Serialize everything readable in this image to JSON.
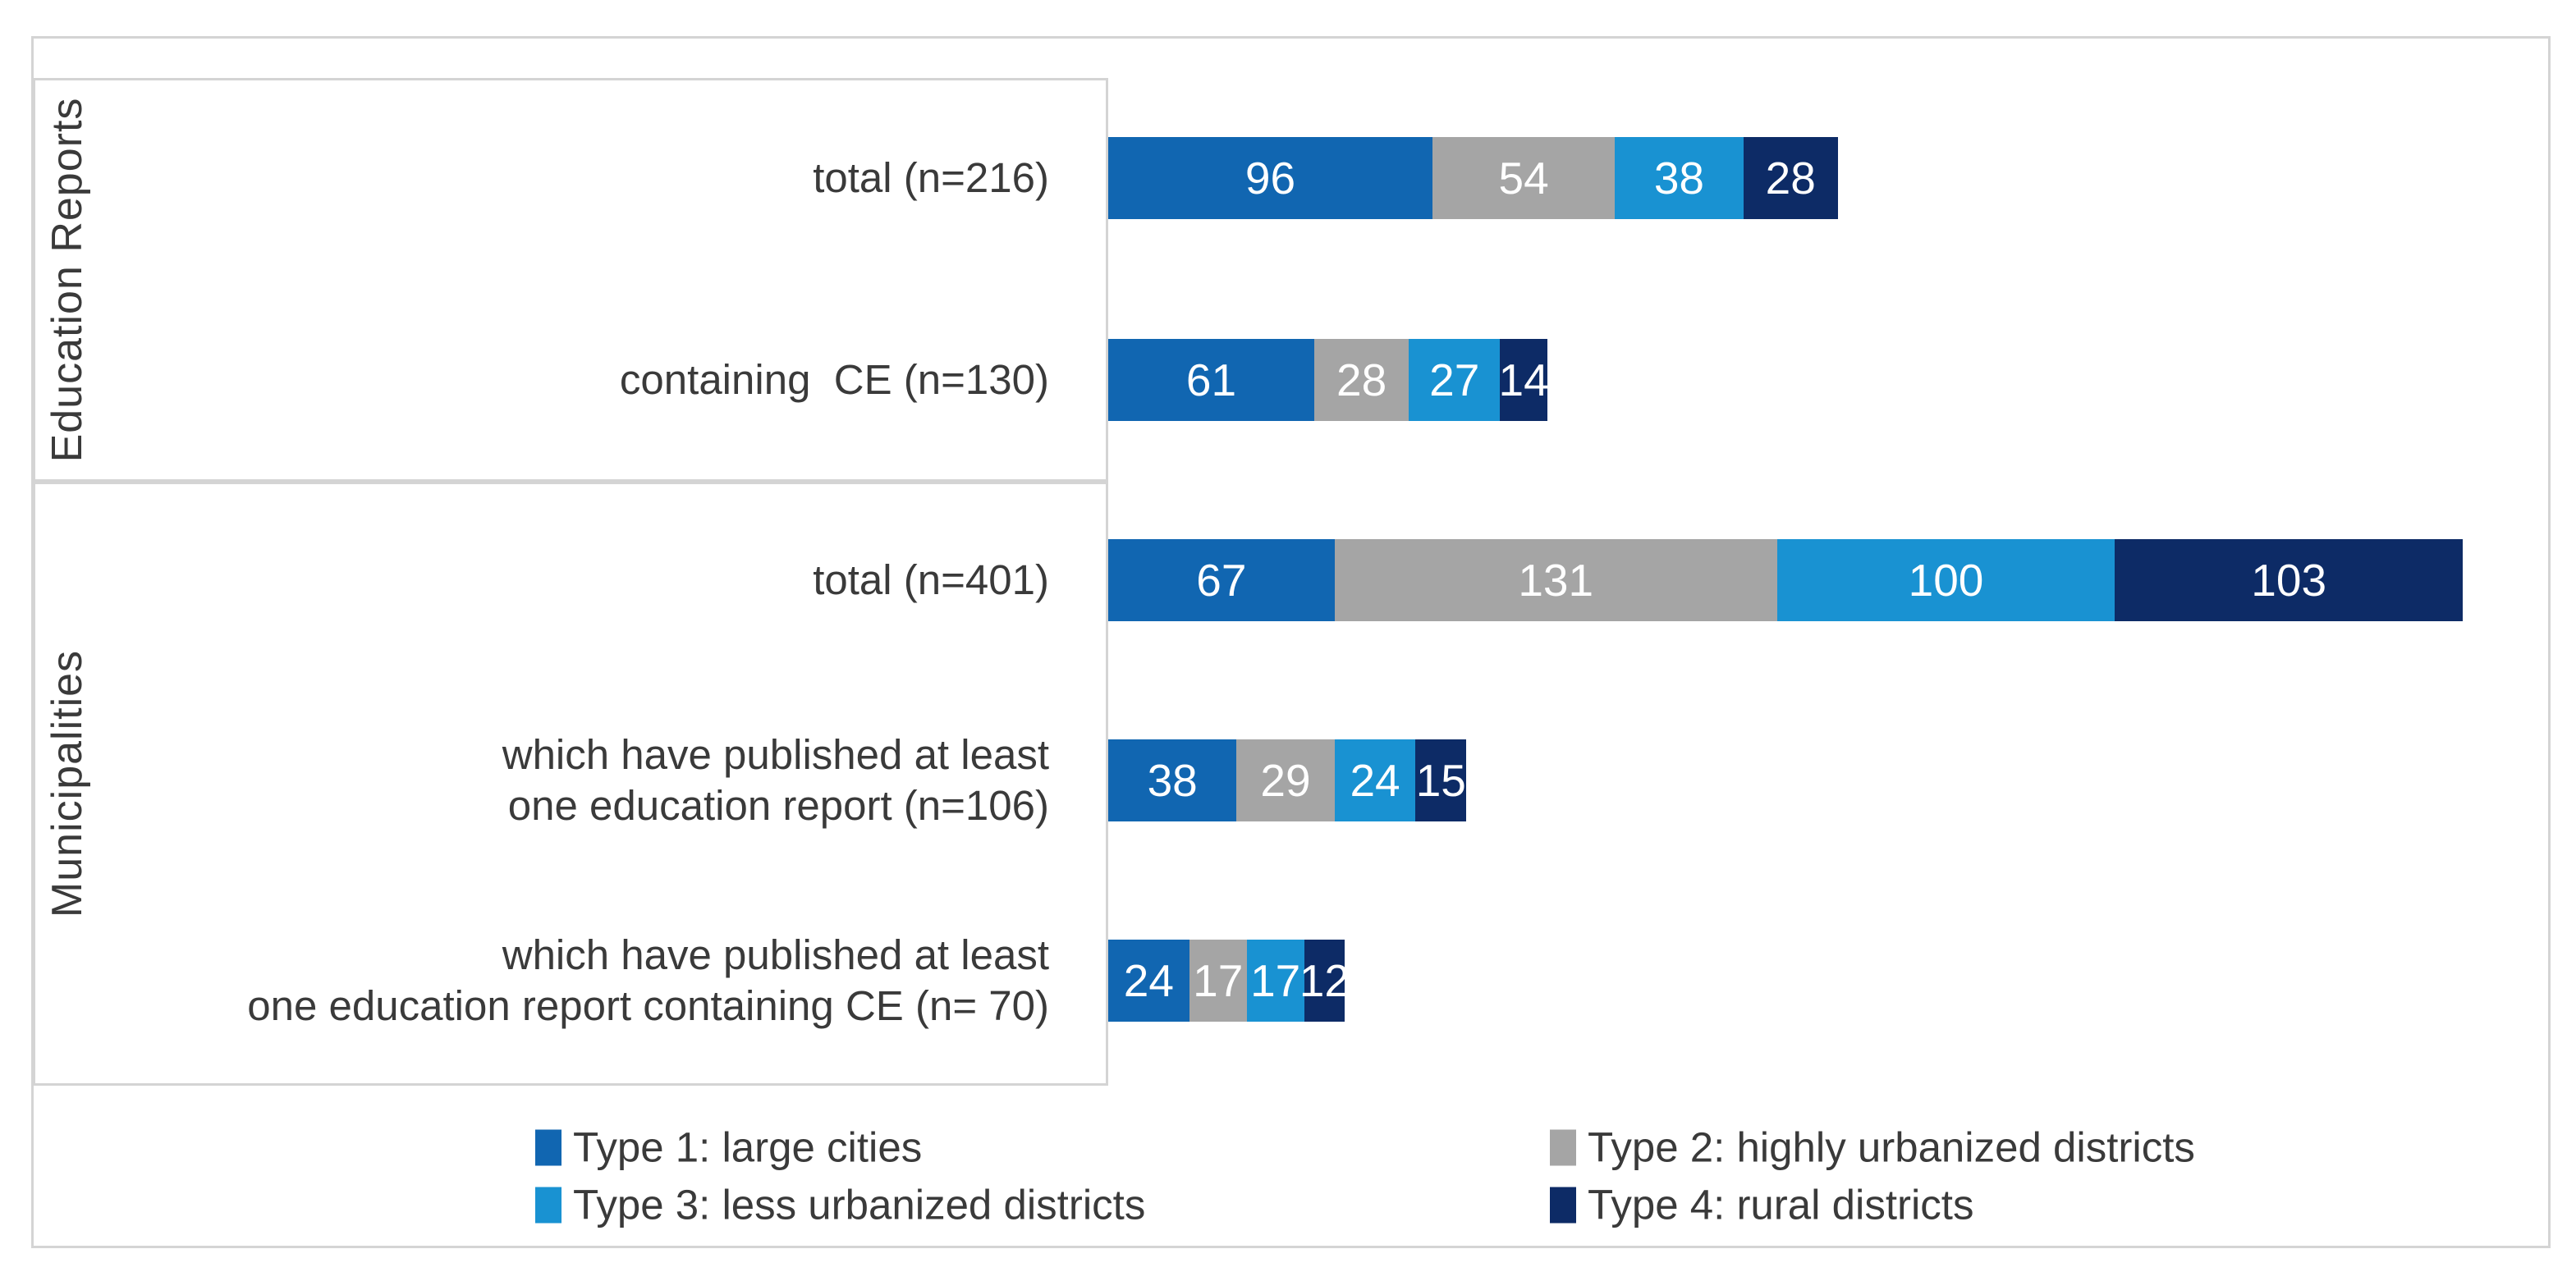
{
  "chart_data": {
    "type": "bar",
    "orientation": "horizontal",
    "stacked": true,
    "grid": false,
    "legend_position": "bottom",
    "value_labels": "inside-center-white",
    "axis_panel_groups": [
      {
        "group_label": "Education Reports",
        "rows": [
          {
            "label_lines": [
              "total (n=216)"
            ],
            "values": [
              96,
              54,
              38,
              28
            ]
          },
          {
            "label_lines": [
              "containing  CE (n=130)"
            ],
            "values": [
              61,
              28,
              27,
              14
            ]
          }
        ]
      },
      {
        "group_label": "Municipalities",
        "rows": [
          {
            "label_lines": [
              "total (n=401)"
            ],
            "values": [
              67,
              131,
              100,
              103
            ]
          },
          {
            "label_lines": [
              "which have published at least",
              "one education report (n=106)"
            ],
            "values": [
              38,
              29,
              24,
              15
            ]
          },
          {
            "label_lines": [
              "which have published at least",
              "one education report containing CE (n= 70)"
            ],
            "values": [
              24,
              17,
              17,
              12
            ]
          }
        ]
      }
    ],
    "series": [
      {
        "name": "Type 1: large cities",
        "color": "#1166B1"
      },
      {
        "name": "Type 2: highly urbanized districts",
        "color": "#A5A5A5"
      },
      {
        "name": "Type 3: less urbanized districts",
        "color": "#1992D2"
      },
      {
        "name": "Type 4: rural districts",
        "color": "#0D2B66"
      }
    ]
  },
  "colors": {
    "border": "#D4D4D4",
    "text": "#3A3A3A",
    "value_label": "#FFFFFF",
    "background": "#FFFFFF"
  }
}
